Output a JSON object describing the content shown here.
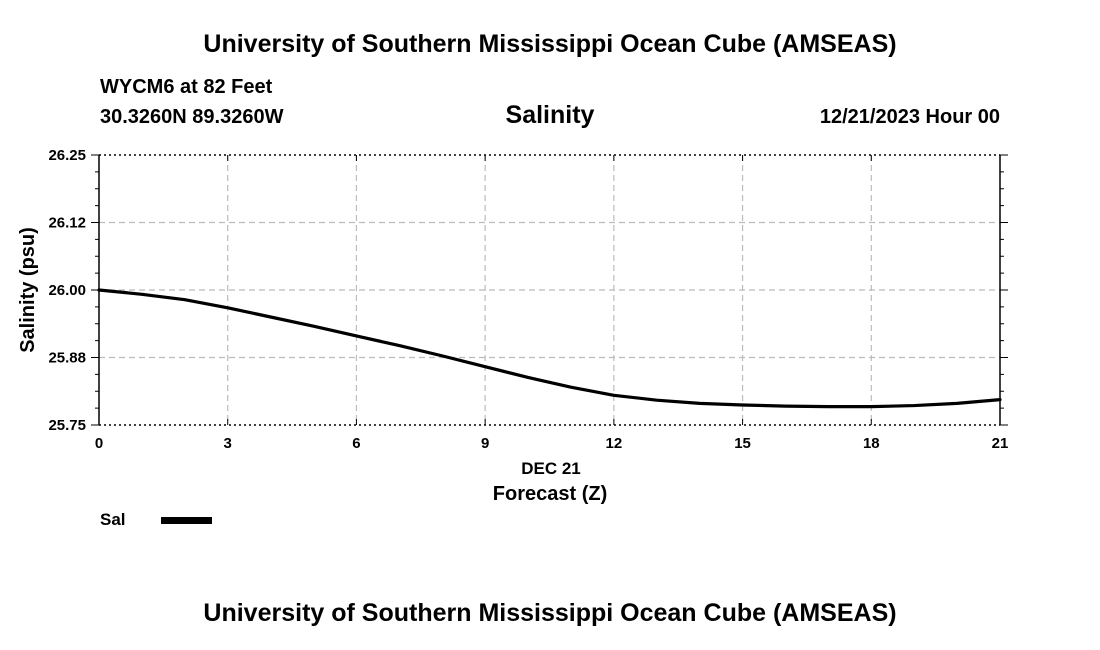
{
  "header": {
    "title": "University of Southern Mississippi Ocean Cube (AMSEAS)",
    "station": "WYCM6 at 82 Feet",
    "coords": "30.3260N  89.3260W",
    "variable": "Salinity",
    "datetime": "12/21/2023 Hour 00"
  },
  "footer": {
    "title": "University of Southern Mississippi Ocean Cube (AMSEAS)"
  },
  "legend": {
    "label": "Sal"
  },
  "colors": {
    "line": "#000000",
    "grid": "#bbbbbb"
  },
  "chart_data": {
    "type": "line",
    "title": "Salinity",
    "xlabel": "Forecast (Z)",
    "xlabel_date": "DEC 21",
    "ylabel": "Salinity (psu)",
    "xlim": [
      0,
      21
    ],
    "ylim": [
      25.75,
      26.25
    ],
    "xticks": [
      0,
      3,
      6,
      9,
      12,
      15,
      18,
      21
    ],
    "xtick_labels": [
      "0",
      "3",
      "6",
      "9",
      "12",
      "15",
      "18",
      "21"
    ],
    "yticks": [
      25.75,
      25.875,
      26.0,
      26.125,
      26.25
    ],
    "ytick_labels": [
      "25.75",
      "25.88",
      "26.00",
      "26.12",
      "26.25"
    ],
    "grid": true,
    "series": [
      {
        "name": "Sal",
        "x": [
          0,
          1,
          2,
          3,
          4,
          5,
          6,
          7,
          8,
          9,
          10,
          11,
          12,
          13,
          14,
          15,
          16,
          17,
          18,
          19,
          20,
          21
        ],
        "values": [
          26.0,
          25.992,
          25.982,
          25.967,
          25.95,
          25.933,
          25.915,
          25.897,
          25.878,
          25.858,
          25.838,
          25.82,
          25.805,
          25.796,
          25.79,
          25.787,
          25.785,
          25.784,
          25.784,
          25.786,
          25.79,
          25.797
        ]
      }
    ]
  }
}
